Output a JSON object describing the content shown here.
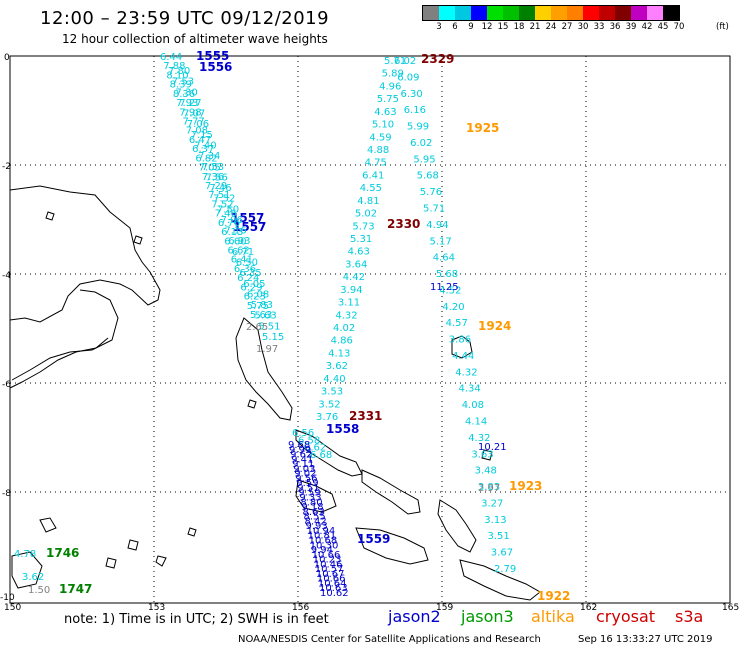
{
  "header": {
    "title": "12:00 – 23:59 UTC 09/12/2019",
    "subtitle": "12 hour collection of altimeter wave heights"
  },
  "color_scale": {
    "labels": [
      "3",
      "6",
      "9",
      "12",
      "15",
      "18",
      "21",
      "24",
      "27",
      "30",
      "33",
      "36",
      "39",
      "42",
      "45",
      "70"
    ],
    "unit": "(ft)",
    "colors": [
      "#808080",
      "#00ffff",
      "#00c8e0",
      "#0000ff",
      "#00e000",
      "#00c000",
      "#008000",
      "#ffd000",
      "#ffa000",
      "#ff8000",
      "#ff0000",
      "#c00000",
      "#800000",
      "#c000c0",
      "#ff80ff",
      "#000000"
    ]
  },
  "axes": {
    "x_ticks": [
      "150",
      "153",
      "156",
      "159",
      "162",
      "165"
    ],
    "y_ticks": [
      "0",
      "-2",
      "-4",
      "-6",
      "-8",
      "-10"
    ]
  },
  "time_labels": [
    {
      "text": "1555",
      "color": "#0000cc"
    },
    {
      "text": "1556",
      "color": "#0000cc"
    },
    {
      "text": "1557",
      "color": "#0000cc"
    },
    {
      "text": "1557",
      "color": "#0000cc"
    },
    {
      "text": "1558",
      "color": "#0000cc"
    },
    {
      "text": "1559",
      "color": "#0000cc"
    },
    {
      "text": "2329",
      "color": "#800000"
    },
    {
      "text": "2330",
      "color": "#800000"
    },
    {
      "text": "2331",
      "color": "#800000"
    },
    {
      "text": "1925",
      "color": "#ff9900"
    },
    {
      "text": "1924",
      "color": "#ff9900"
    },
    {
      "text": "1923",
      "color": "#ff9900"
    },
    {
      "text": "1922",
      "color": "#ff9900"
    },
    {
      "text": "1746",
      "color": "#008000"
    },
    {
      "text": "1747",
      "color": "#008000"
    }
  ],
  "tracks": {
    "jason2_outer": {
      "color": "#00ccdd",
      "values": [
        "6.44",
        "7.88",
        "8.10",
        "8.39",
        "8.36",
        "7.93",
        "7.98",
        "7.77",
        "7.08",
        "6.47",
        "6.37",
        "6.82",
        "7.05",
        "7.36",
        "7.29",
        "7.51",
        "7.52",
        "7.46",
        "6.76",
        "6.13",
        "6.60",
        "6.62",
        "6.41",
        "6.36",
        "6.24",
        "6.29",
        "6.23",
        "5.75",
        "5.63"
      ]
    },
    "jason2_inner": {
      "color": "#00ccdd",
      "values": [
        "7.80",
        "7.53",
        "7.30",
        "7.27",
        "7.07",
        "7.06",
        "7.15",
        "7.40",
        "7.34",
        "7.53",
        "7.56",
        "7.46",
        "7.52",
        "7.50",
        "7.06",
        "7.16",
        "6.93",
        "6.71",
        "6.50",
        "6.35",
        "6.05",
        "6.08",
        "5.83",
        "5.63",
        "5.51",
        "5.15"
      ]
    },
    "track_grey": {
      "color": "#808080",
      "values": [
        "2.65",
        "1.97"
      ]
    },
    "track_middle": {
      "color": "#00ccdd",
      "values": [
        "5.71",
        "5.89",
        "4.96",
        "5.75",
        "4.63",
        "5.10",
        "4.59",
        "4.88",
        "4.75",
        "6.41",
        "4.55",
        "4.81",
        "5.02",
        "5.73",
        "5.31",
        "4.63",
        "3.64",
        "4.42",
        "3.94",
        "3.11",
        "4.32",
        "4.02",
        "4.86",
        "4.13",
        "3.62",
        "4.40",
        "3.53",
        "3.52",
        "3.76"
      ]
    },
    "track_right": {
      "color": "#00ccdd",
      "values": [
        "6.02",
        "6.09",
        "6.30",
        "6.16",
        "5.99",
        "6.02",
        "5.95",
        "5.68",
        "5.76",
        "5.71",
        "4.94",
        "5.17",
        "4.64",
        "5.68",
        "4.52",
        "4.20",
        "4.57",
        "3.86",
        "4.44",
        "4.32",
        "4.34",
        "4.08",
        "4.14",
        "4.32",
        "3.63",
        "3.48",
        "3.83",
        "3.27",
        "3.13",
        "3.51",
        "3.67",
        "2.79"
      ]
    },
    "track_right_blue": {
      "color": "#0000cc",
      "values": [
        "11.25",
        "10.21"
      ]
    },
    "track_right_grey": {
      "color": "#808080",
      "values": [
        "2.97"
      ]
    },
    "track_lower_cyan": {
      "color": "#00ccdd",
      "values": [
        "6.56",
        "6.58",
        "6.62",
        "6.68"
      ]
    },
    "track_lower_blue": {
      "color": "#0000cc",
      "values": [
        "9.68",
        "9.99",
        "9.62",
        "9.41",
        "9.11",
        "9.03",
        "9.02",
        "9.56",
        "9.59",
        "9.51",
        "9.59",
        "9.33",
        "8.80",
        "9.18",
        "8.63",
        "8.55",
        "8.42",
        "9.93",
        "10.94",
        "10.81",
        "10.68",
        "10.30",
        "9.94",
        "10.66",
        "10.23",
        "10.46",
        "10.57",
        "10.67",
        "10.66",
        "10.64",
        "10.63",
        "10.62"
      ]
    },
    "altika_left": {
      "color": "#00ccdd",
      "values": [
        "4.78",
        "3.62"
      ]
    },
    "altika_left_grey": {
      "color": "#808080",
      "values": [
        "1.50"
      ]
    }
  },
  "footer": {
    "note": "note:  1) Time is in UTC;  2) SWH is in feet",
    "legend": [
      {
        "label": "jason2",
        "color": "#0000cc"
      },
      {
        "label": "jason3",
        "color": "#009900"
      },
      {
        "label": "altika",
        "color": "#ff9900"
      },
      {
        "label": "cryosat",
        "color": "#cc0000"
      },
      {
        "label": "s3a",
        "color": "#cc0000"
      }
    ],
    "credit": "NOAA/NESDIS Center for Satellite Applications and Research",
    "timestamp": "Sep 16 13:33:27 UTC 2019"
  }
}
